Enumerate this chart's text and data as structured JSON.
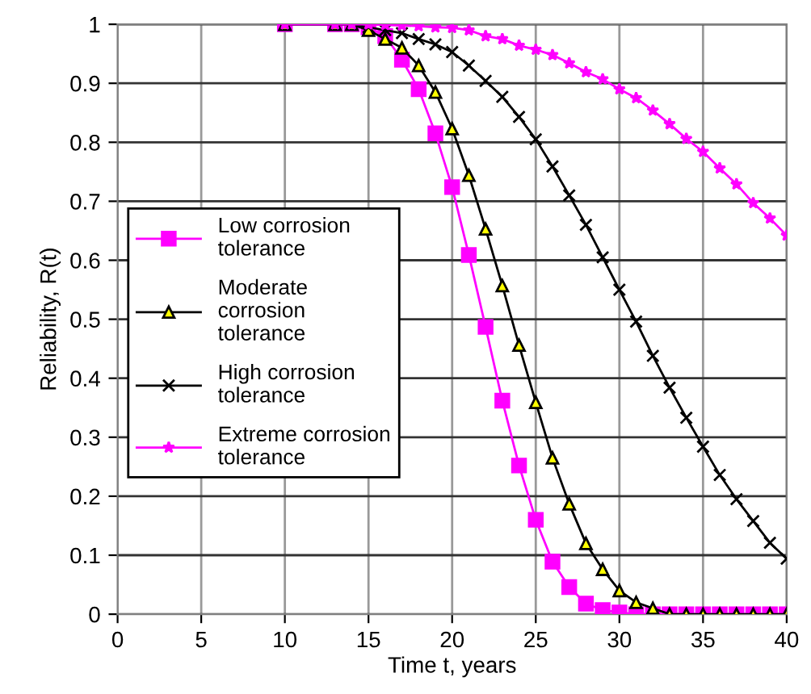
{
  "chart_data": {
    "type": "line",
    "xlabel": "Time t, years",
    "ylabel": "Reliability, R(t)",
    "x": [
      10,
      13,
      14,
      15,
      16,
      17,
      18,
      19,
      20,
      21,
      22,
      23,
      24,
      25,
      26,
      27,
      28,
      29,
      30,
      31,
      32,
      33,
      34,
      35,
      36,
      37,
      38,
      39,
      40
    ],
    "xlim": [
      0,
      40
    ],
    "xticks": [
      0,
      5,
      10,
      15,
      20,
      25,
      30,
      35,
      40
    ],
    "ylim": [
      0,
      1
    ],
    "yticks": [
      0,
      0.1,
      0.2,
      0.3,
      0.4,
      0.5,
      0.6,
      0.7,
      0.8,
      0.9,
      1
    ],
    "grid": true,
    "legend": "left",
    "series": [
      {
        "name": "Low corrosion\ntolerance",
        "color": "#ff00ff",
        "marker": "square",
        "values": [
          1,
          1,
          1,
          0.995,
          0.98,
          0.94,
          0.89,
          0.815,
          0.724,
          0.609,
          0.487,
          0.362,
          0.252,
          0.16,
          0.089,
          0.046,
          0.018,
          0.007,
          0.003,
          0,
          0,
          0,
          0,
          0,
          0,
          0,
          0,
          0,
          0
        ]
      },
      {
        "name": "Moderate\ncorrosion\ntolerance",
        "color": "#000000",
        "marker": "triangle",
        "values": [
          1,
          1,
          1,
          0.99,
          0.975,
          0.96,
          0.93,
          0.885,
          0.823,
          0.744,
          0.653,
          0.557,
          0.456,
          0.359,
          0.265,
          0.187,
          0.12,
          0.076,
          0.04,
          0.02,
          0.01,
          0,
          0,
          0,
          0,
          0,
          0,
          0,
          0
        ]
      },
      {
        "name": "High corrosion\ntolerance",
        "color": "#000000",
        "marker": "cross",
        "values": [
          1,
          1,
          1,
          0.995,
          0.99,
          0.985,
          0.975,
          0.966,
          0.953,
          0.93,
          0.904,
          0.877,
          0.843,
          0.805,
          0.759,
          0.71,
          0.66,
          0.605,
          0.55,
          0.496,
          0.438,
          0.384,
          0.333,
          0.284,
          0.236,
          0.195,
          0.158,
          0.121,
          0.094
        ]
      },
      {
        "name": "Extreme corrosion\ntolerance",
        "color": "#ff00ff",
        "marker": "star",
        "values": [
          1,
          1,
          1,
          1,
          0.999,
          0.998,
          0.997,
          0.995,
          0.994,
          0.99,
          0.98,
          0.975,
          0.964,
          0.957,
          0.948,
          0.934,
          0.919,
          0.907,
          0.89,
          0.875,
          0.854,
          0.831,
          0.806,
          0.784,
          0.756,
          0.729,
          0.697,
          0.671,
          0.642
        ]
      }
    ]
  }
}
